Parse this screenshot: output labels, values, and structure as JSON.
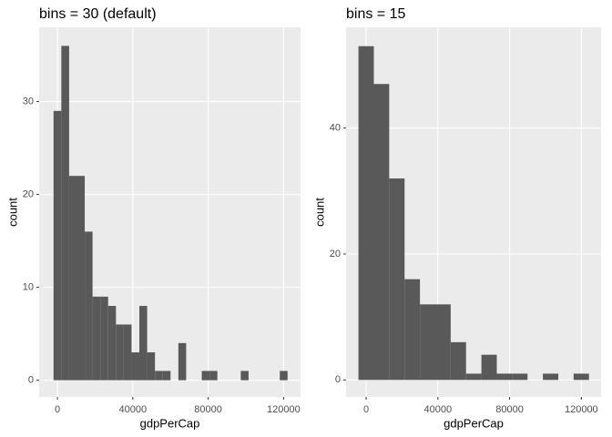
{
  "chart_data": [
    {
      "type": "histogram",
      "title": "bins = 30 (default)",
      "x_label": "gdpPerCap",
      "y_label": "count",
      "color": "#595959",
      "grid": true,
      "bins": [
        -2070,
        2070,
        6210,
        10350,
        14490,
        18630,
        22770,
        26910,
        31050,
        35190,
        39330,
        43470,
        47610,
        51750,
        55890,
        60030,
        64170,
        68310,
        72450,
        76590,
        80730,
        84870,
        89010,
        93150,
        97290,
        101430,
        105570,
        109710,
        113850,
        117990,
        122130
      ],
      "values": [
        29,
        36,
        22,
        22,
        16,
        9,
        9,
        8,
        6,
        6,
        3,
        8,
        3,
        1,
        1,
        0,
        4,
        0,
        0,
        1,
        1,
        0,
        0,
        0,
        1,
        0,
        0,
        0,
        0,
        1
      ],
      "xlim": [
        -9700,
        129000
      ],
      "ylim": [
        -1.8,
        38
      ],
      "xticks": [
        0,
        40000,
        80000,
        120000
      ],
      "yticks": [
        0,
        10,
        20,
        30
      ]
    },
    {
      "type": "histogram",
      "title": "bins = 15",
      "x_label": "gdpPerCap",
      "y_label": "count",
      "color": "#595959",
      "grid": true,
      "bins": [
        -4285,
        4285,
        12855,
        21425,
        29995,
        38565,
        47135,
        55705,
        64275,
        72845,
        81415,
        89985,
        98555,
        107125,
        115695,
        124265
      ],
      "values": [
        53,
        47,
        32,
        16,
        12,
        12,
        6,
        1,
        4,
        1,
        1,
        0,
        1,
        0,
        1
      ],
      "xlim": [
        -11200,
        131000
      ],
      "ylim": [
        -2.7,
        56
      ],
      "xticks": [
        0,
        40000,
        80000,
        120000
      ],
      "yticks": [
        0,
        20,
        40
      ]
    }
  ]
}
